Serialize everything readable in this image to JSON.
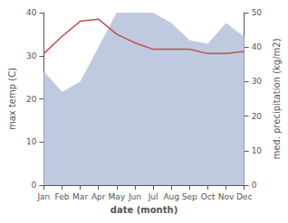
{
  "chart_data": {
    "type": "line",
    "xlabel": "date (month)",
    "ylabel": "max temp (C)",
    "y2label": "med. precipitation (kg/m2)",
    "categories": [
      "Jan",
      "Feb",
      "Mar",
      "Apr",
      "May",
      "Jun",
      "Jul",
      "Aug",
      "Sep",
      "Oct",
      "Nov",
      "Dec"
    ],
    "series": [
      {
        "type": "area",
        "color": "#bfc9e0",
        "axis": "y2",
        "values": [
          33.0,
          27.0,
          30.0,
          40.0,
          50.0,
          50.0,
          50.0,
          47.0,
          42.0,
          41.0,
          47.0,
          43.0
        ]
      },
      {
        "type": "line",
        "color": "#c0504d",
        "values": [
          30.5,
          34.5,
          38.0,
          38.5,
          35.0,
          33.0,
          31.5,
          31.5,
          31.5,
          30.5,
          30.5,
          31.0
        ]
      }
    ],
    "ylim": [
      0,
      40
    ],
    "yticks": [
      0,
      10,
      20,
      30,
      40
    ],
    "y2lim": [
      0,
      50
    ],
    "y2ticks": [
      0,
      10,
      20,
      30,
      40,
      50
    ],
    "grid": false
  }
}
